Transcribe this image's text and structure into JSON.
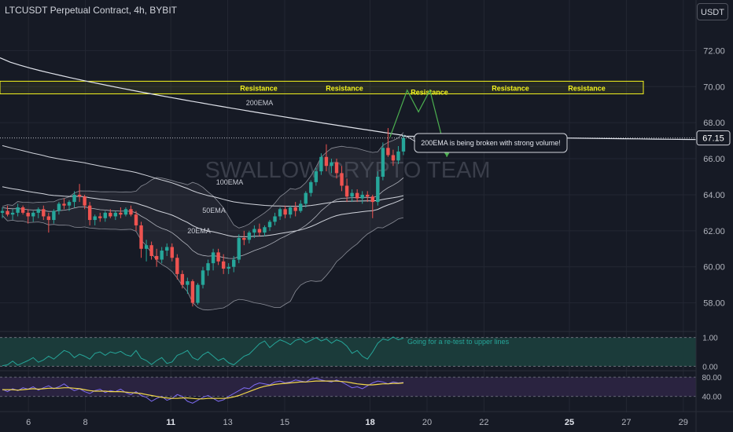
{
  "header": {
    "title": "LTCUSDT Perpetual Contract, 4h, BYBIT",
    "currency": "USDT"
  },
  "watermark": "SWALLOW CRYPTO TEAM",
  "colors": {
    "background": "#161a25",
    "up": "#26a69a",
    "down": "#ef5350",
    "resistance": "#f5f51f",
    "ema200": "#e0e3eb",
    "projection": "#4caf50",
    "rsi_fill": "#1b3b3a",
    "stoch_fill": "#2a2340",
    "stoch_k": "#7e6bf2",
    "stoch_d": "#f2d84a"
  },
  "chart_data": {
    "type": "candlestick",
    "ylim": [
      56.5,
      73.5
    ],
    "price_ticks": [
      "72.00",
      "70.00",
      "68.00",
      "66.00",
      "64.00",
      "62.00",
      "60.00",
      "58.00"
    ],
    "current_price": "67.15",
    "x_ticks": [
      "6",
      "8",
      "11",
      "13",
      "15",
      "18",
      "20",
      "22",
      "25",
      "27",
      "29"
    ],
    "bold_ticks": [
      "11",
      "18",
      "25"
    ],
    "resistance_zone": [
      69.6,
      70.3
    ],
    "resistance_labels": [
      "Resistance",
      "Resistance",
      "Resistance",
      "Resistance",
      "Resistance"
    ],
    "ma_labels": [
      "200EMA",
      "100EMA",
      "50EMA",
      "20EMA"
    ],
    "annotation": "200EMA is being broken with strong volume!",
    "projection_path": [
      [
        18.7,
        67.2
      ],
      [
        19.3,
        69.8
      ],
      [
        19.7,
        68.6
      ],
      [
        20.1,
        69.8
      ],
      [
        20.7,
        66.1
      ]
    ],
    "candles_ohlc": [
      [
        63.0,
        63.3,
        62.7,
        63.1
      ],
      [
        63.1,
        63.4,
        62.8,
        62.9
      ],
      [
        62.9,
        63.2,
        62.6,
        63.0
      ],
      [
        63.0,
        63.5,
        62.8,
        63.3
      ],
      [
        63.3,
        63.4,
        62.9,
        63.0
      ],
      [
        63.0,
        63.2,
        62.4,
        62.8
      ],
      [
        62.8,
        63.1,
        62.5,
        63.0
      ],
      [
        63.0,
        63.3,
        62.7,
        63.2
      ],
      [
        63.2,
        63.4,
        62.6,
        62.8
      ],
      [
        62.8,
        63.0,
        61.9,
        62.6
      ],
      [
        62.6,
        63.2,
        62.4,
        63.1
      ],
      [
        63.1,
        63.6,
        62.9,
        63.5
      ],
      [
        63.5,
        63.8,
        63.2,
        63.4
      ],
      [
        63.4,
        63.7,
        63.1,
        63.6
      ],
      [
        63.6,
        64.2,
        63.3,
        64.0
      ],
      [
        64.0,
        64.6,
        63.6,
        63.9
      ],
      [
        63.9,
        64.0,
        63.2,
        63.4
      ],
      [
        63.4,
        63.6,
        62.3,
        62.6
      ],
      [
        62.6,
        62.9,
        62.3,
        62.8
      ],
      [
        62.8,
        63.0,
        62.5,
        62.7
      ],
      [
        62.7,
        63.1,
        62.5,
        63.0
      ],
      [
        63.0,
        63.2,
        62.7,
        62.8
      ],
      [
        62.8,
        63.1,
        62.6,
        63.0
      ],
      [
        63.0,
        63.3,
        62.7,
        62.9
      ],
      [
        62.9,
        63.3,
        62.8,
        63.2
      ],
      [
        63.2,
        63.4,
        62.8,
        62.9
      ],
      [
        62.9,
        63.1,
        62.0,
        62.3
      ],
      [
        62.3,
        62.5,
        60.5,
        61.0
      ],
      [
        61.0,
        61.5,
        60.3,
        61.2
      ],
      [
        61.2,
        61.4,
        60.4,
        60.6
      ],
      [
        60.6,
        61.0,
        60.0,
        60.4
      ],
      [
        60.4,
        61.1,
        60.2,
        60.9
      ],
      [
        60.9,
        61.3,
        60.6,
        61.1
      ],
      [
        61.1,
        61.3,
        60.3,
        60.5
      ],
      [
        60.5,
        60.7,
        59.3,
        59.6
      ],
      [
        59.6,
        59.8,
        58.8,
        59.0
      ],
      [
        59.0,
        59.4,
        58.5,
        59.2
      ],
      [
        59.2,
        59.3,
        57.8,
        58.0
      ],
      [
        58.0,
        59.1,
        57.9,
        59.0
      ],
      [
        59.0,
        60.0,
        58.8,
        59.8
      ],
      [
        59.8,
        60.4,
        59.5,
        60.2
      ],
      [
        60.2,
        61.0,
        59.8,
        60.8
      ],
      [
        60.8,
        61.0,
        60.1,
        60.3
      ],
      [
        60.3,
        60.7,
        59.6,
        59.9
      ],
      [
        59.9,
        60.2,
        59.6,
        60.0
      ],
      [
        60.0,
        60.6,
        59.7,
        60.4
      ],
      [
        60.4,
        61.8,
        60.2,
        61.6
      ],
      [
        61.6,
        62.0,
        61.2,
        61.5
      ],
      [
        61.5,
        62.0,
        61.3,
        61.9
      ],
      [
        61.9,
        62.3,
        61.6,
        62.1
      ],
      [
        62.1,
        62.4,
        61.7,
        61.9
      ],
      [
        61.9,
        62.3,
        61.7,
        62.2
      ],
      [
        62.2,
        62.6,
        62.0,
        62.5
      ],
      [
        62.5,
        63.0,
        62.3,
        62.8
      ],
      [
        62.8,
        63.3,
        62.6,
        63.2
      ],
      [
        63.2,
        63.4,
        62.7,
        62.9
      ],
      [
        62.9,
        63.4,
        62.7,
        63.3
      ],
      [
        63.3,
        63.6,
        62.8,
        63.1
      ],
      [
        63.1,
        63.7,
        63.0,
        63.5
      ],
      [
        63.5,
        64.2,
        63.3,
        64.1
      ],
      [
        64.1,
        64.8,
        63.9,
        64.7
      ],
      [
        64.7,
        65.5,
        64.5,
        65.3
      ],
      [
        65.3,
        66.3,
        65.1,
        66.1
      ],
      [
        66.1,
        66.8,
        65.3,
        65.6
      ],
      [
        65.6,
        66.0,
        65.2,
        65.8
      ],
      [
        65.8,
        66.0,
        64.9,
        65.2
      ],
      [
        65.2,
        65.6,
        64.2,
        64.5
      ],
      [
        64.5,
        64.9,
        63.6,
        63.9
      ],
      [
        63.9,
        64.3,
        63.6,
        64.1
      ],
      [
        64.1,
        64.3,
        63.6,
        63.8
      ],
      [
        63.8,
        64.2,
        63.5,
        64.0
      ],
      [
        64.0,
        64.2,
        63.6,
        63.9
      ],
      [
        63.9,
        64.0,
        62.7,
        63.6
      ],
      [
        63.6,
        65.3,
        63.4,
        65.0
      ],
      [
        65.0,
        66.9,
        64.8,
        66.6
      ],
      [
        66.6,
        67.7,
        66.1,
        66.2
      ],
      [
        66.2,
        66.5,
        65.6,
        65.9
      ],
      [
        65.9,
        66.7,
        65.7,
        66.4
      ],
      [
        66.4,
        67.3,
        66.2,
        67.15
      ]
    ],
    "rsi": {
      "ylim": [
        -0.1,
        1.1
      ],
      "ticks": [
        "1.00",
        "0.00"
      ],
      "label": "Going for a re-test to upper lines",
      "values": [
        0.02,
        0.05,
        0.18,
        0.04,
        0.12,
        0.2,
        0.3,
        0.14,
        0.22,
        0.35,
        0.25,
        0.4,
        0.55,
        0.48,
        0.3,
        0.42,
        0.35,
        0.25,
        0.45,
        0.5,
        0.38,
        0.5,
        0.45,
        0.52,
        0.4,
        0.35,
        0.55,
        0.28,
        0.2,
        0.06,
        0.2,
        0.3,
        0.1,
        0.15,
        0.38,
        0.45,
        0.55,
        0.3,
        0.22,
        0.4,
        0.5,
        0.35,
        0.2,
        0.28,
        0.12,
        0.05,
        0.2,
        0.35,
        0.42,
        0.6,
        0.78,
        0.88,
        0.65,
        0.8,
        0.92,
        0.85,
        0.75,
        0.9,
        0.95,
        0.82,
        0.9,
        1.0,
        0.88,
        0.95,
        0.8,
        0.92,
        0.85,
        0.7,
        0.45,
        0.55,
        0.35,
        0.25,
        0.5,
        0.8,
        0.95,
        0.9,
        1.02,
        0.92,
        0.98
      ]
    },
    "stoch": {
      "ylim": [
        20,
        90
      ],
      "ticks": [
        "80.00",
        "40.00"
      ],
      "k": [
        55,
        50,
        56,
        52,
        58,
        55,
        60,
        53,
        58,
        62,
        56,
        60,
        66,
        58,
        52,
        56,
        50,
        46,
        52,
        55,
        48,
        52,
        50,
        55,
        48,
        44,
        50,
        42,
        38,
        30,
        36,
        40,
        32,
        36,
        44,
        40,
        30,
        26,
        32,
        38,
        42,
        36,
        30,
        33,
        40,
        46,
        52,
        58,
        56,
        64,
        68,
        66,
        64,
        70,
        72,
        68,
        70,
        74,
        72,
        70,
        76,
        78,
        74,
        72,
        70,
        74,
        70,
        64,
        58,
        60,
        56,
        62,
        68,
        72,
        70,
        66,
        70,
        68,
        69
      ],
      "d": [
        54,
        54,
        54,
        53,
        54,
        55,
        56,
        55,
        56,
        57,
        57,
        57,
        58,
        58,
        57,
        56,
        54,
        52,
        51,
        51,
        51,
        50,
        50,
        50,
        49,
        48,
        47,
        46,
        44,
        42,
        40,
        38,
        37,
        36,
        36,
        37,
        37,
        36,
        35,
        35,
        36,
        36,
        36,
        36,
        37,
        39,
        42,
        46,
        50,
        54,
        58,
        61,
        63,
        65,
        66,
        67,
        68,
        69,
        70,
        70,
        71,
        72,
        72,
        72,
        72,
        72,
        71,
        70,
        68,
        66,
        65,
        64,
        64,
        65,
        66,
        66,
        67,
        67,
        68
      ]
    }
  }
}
